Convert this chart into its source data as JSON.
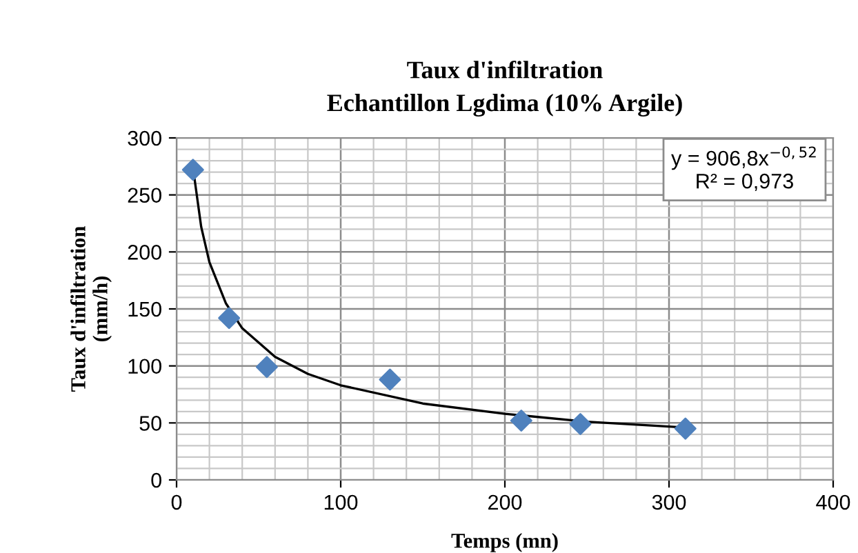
{
  "chart_data": {
    "type": "scatter",
    "title": "Taux d'infiltration\nEchantillon Lgdima (10% Argile)",
    "xlabel": "Temps (mn)",
    "ylabel": "Taux d'infiltration\n(mm/h)",
    "series": [
      {
        "color": "#4f81bd",
        "marker": "diamond",
        "x": [
          10,
          32,
          55,
          130,
          210,
          246,
          310
        ],
        "values": [
          272,
          142,
          99,
          88,
          52,
          49,
          45
        ]
      },
      {
        "type": "line",
        "color": "#000000",
        "marker": "none",
        "line_style": "solid",
        "x": [
          10,
          15,
          20,
          30,
          40,
          60,
          80,
          100,
          150,
          200,
          250,
          310
        ],
        "values": [
          274,
          222,
          191,
          155,
          133,
          108,
          93,
          83,
          67,
          58,
          51,
          46
        ]
      }
    ],
    "annotations": [
      "y = 906,8x$^{−0,52}$\nR² = 0,973"
    ],
    "xlim": [
      0,
      400
    ],
    "xticks": [
      0,
      100,
      200,
      300,
      400
    ],
    "ylim": [
      0,
      300
    ],
    "yticks": [
      0,
      50,
      100,
      150,
      200,
      250,
      300
    ],
    "grid": true,
    "legend": false
  }
}
